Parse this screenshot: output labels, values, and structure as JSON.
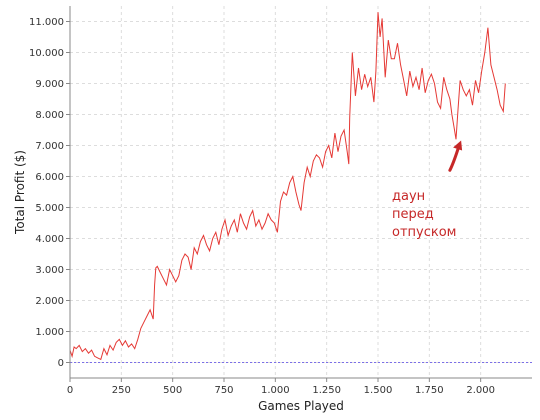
{
  "chart_data": {
    "type": "line",
    "title": "",
    "xlabel": "Games Played",
    "ylabel": "Total Profit ($)",
    "xlim": [
      0,
      2250
    ],
    "ylim": [
      -500,
      11500
    ],
    "x_ticks": [
      0,
      250,
      500,
      750,
      1000,
      1250,
      1500,
      1750,
      2000
    ],
    "x_tick_labels": [
      "0",
      "250",
      "500",
      "750",
      "1.000",
      "1.250",
      "1.500",
      "1.750",
      "2.000"
    ],
    "y_ticks": [
      0,
      1000,
      2000,
      3000,
      4000,
      5000,
      6000,
      7000,
      8000,
      9000,
      10000,
      11000
    ],
    "y_tick_labels": [
      "0",
      "1.000",
      "2.000",
      "3.000",
      "4.000",
      "5.000",
      "6.000",
      "7.000",
      "8.000",
      "9.000",
      "10.000",
      "11.000"
    ],
    "grid": true,
    "baseline": 0,
    "colors": {
      "series": "#e53935",
      "baseline": "#7c6fe8",
      "grid": "#dddddd",
      "annotation": "#c62828"
    },
    "series": [
      {
        "x": [
          0,
          10,
          20,
          30,
          45,
          60,
          75,
          90,
          105,
          120,
          135,
          150,
          165,
          180,
          195,
          210,
          225,
          240,
          255,
          270,
          285,
          300,
          315,
          330,
          345,
          360,
          375,
          390,
          405,
          412,
          418,
          425,
          440,
          455,
          470,
          485,
          500,
          515,
          530,
          545,
          560,
          575,
          590,
          605,
          620,
          635,
          650,
          665,
          680,
          695,
          710,
          725,
          740,
          755,
          770,
          785,
          800,
          815,
          830,
          845,
          860,
          875,
          890,
          905,
          920,
          935,
          950,
          965,
          980,
          995,
          1010,
          1025,
          1040,
          1055,
          1070,
          1085,
          1100,
          1115,
          1125,
          1140,
          1155,
          1170,
          1185,
          1200,
          1215,
          1230,
          1245,
          1260,
          1275,
          1290,
          1305,
          1320,
          1335,
          1350,
          1358,
          1362,
          1375,
          1390,
          1405,
          1420,
          1435,
          1450,
          1465,
          1480,
          1490,
          1500,
          1510,
          1520,
          1535,
          1550,
          1565,
          1580,
          1595,
          1610,
          1625,
          1640,
          1655,
          1670,
          1685,
          1700,
          1715,
          1730,
          1745,
          1760,
          1775,
          1790,
          1805,
          1820,
          1835,
          1850,
          1860,
          1870,
          1880,
          1890,
          1900,
          1915,
          1930,
          1945,
          1960,
          1975,
          1990,
          2005,
          2020,
          2035,
          2050,
          2065,
          2080,
          2095,
          2110,
          2120
        ],
        "y": [
          400,
          200,
          500,
          450,
          550,
          350,
          450,
          300,
          400,
          200,
          150,
          100,
          450,
          250,
          550,
          400,
          650,
          750,
          550,
          700,
          500,
          600,
          450,
          750,
          1100,
          1300,
          1500,
          1700,
          1400,
          2500,
          3050,
          3100,
          2900,
          2700,
          2500,
          3000,
          2800,
          2600,
          2800,
          3300,
          3500,
          3400,
          3000,
          3700,
          3500,
          3900,
          4100,
          3800,
          3600,
          4000,
          4200,
          3800,
          4300,
          4600,
          4100,
          4400,
          4600,
          4200,
          4800,
          4500,
          4300,
          4700,
          4900,
          4400,
          4600,
          4300,
          4500,
          4800,
          4600,
          4500,
          4200,
          5200,
          5500,
          5400,
          5800,
          6000,
          5500,
          5100,
          4900,
          5800,
          6300,
          6000,
          6500,
          6700,
          6600,
          6300,
          6800,
          7000,
          6600,
          7400,
          6800,
          7300,
          7500,
          6800,
          6400,
          7900,
          10000,
          8600,
          9500,
          8800,
          9300,
          8900,
          9200,
          8400,
          9400,
          11300,
          10500,
          11100,
          9200,
          10400,
          9800,
          9800,
          10300,
          9600,
          9100,
          8600,
          9400,
          8900,
          9200,
          8800,
          9500,
          8700,
          9100,
          9300,
          9000,
          8400,
          8200,
          9200,
          8800,
          8500,
          8000,
          7600,
          7200,
          8200,
          9100,
          8800,
          8600,
          8800,
          8300,
          9100,
          8700,
          9400,
          10000,
          10800,
          9600,
          9200,
          8800,
          8300,
          8100,
          9000
        ]
      }
    ],
    "annotation": {
      "text_lines": [
        "даун",
        "перед",
        "отпуском"
      ],
      "arrow": {
        "from": [
          1850,
          6200
        ],
        "to": [
          1895,
          7000
        ]
      }
    }
  }
}
